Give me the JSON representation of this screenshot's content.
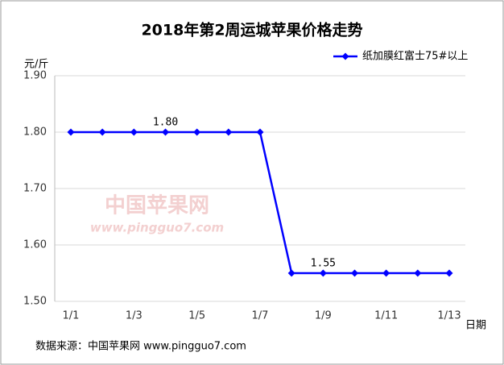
{
  "chart_data": {
    "type": "line",
    "title": "2018年第2周运城苹果价格走势",
    "y_label": "元/斤",
    "x_label": "日期",
    "source": "数据来源：中国苹果网 www.pingguo7.com",
    "watermark": [
      "中国苹果网",
      "www.pingguo7.com"
    ],
    "categories": [
      "1/1",
      null,
      "1/3",
      null,
      "1/5",
      null,
      "1/7",
      null,
      "1/9",
      null,
      "1/11",
      null,
      "1/13"
    ],
    "series": [
      {
        "name": "纸加膜红富士75#以上",
        "color": "#0000ff",
        "values": [
          1.8,
          1.8,
          1.8,
          1.8,
          1.8,
          1.8,
          1.8,
          1.55,
          1.55,
          1.55,
          1.55,
          1.55,
          1.55
        ],
        "value_labels": [
          null,
          null,
          null,
          "1.80",
          null,
          null,
          null,
          null,
          "1.55",
          null,
          null,
          null,
          null
        ]
      }
    ],
    "ylim": [
      1.5,
      1.9
    ],
    "yticks": [
      {
        "value": 1.5,
        "label": "1.50"
      },
      {
        "value": 1.6,
        "label": "1.60"
      },
      {
        "value": 1.7,
        "label": "1.70"
      },
      {
        "value": 1.8,
        "label": "1.80"
      },
      {
        "value": 1.9,
        "label": "1.90"
      }
    ],
    "grid": true,
    "legend": "top-right"
  }
}
